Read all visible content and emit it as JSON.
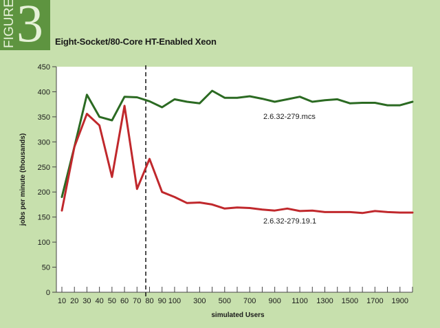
{
  "figure": {
    "word": "FIGURE",
    "number": "3"
  },
  "colors": {
    "background": "#c7e0ad",
    "badge": "#5e9440",
    "green_series": "#2b6a22",
    "red_series": "#c0282c"
  },
  "chart_data": {
    "type": "line",
    "title": "Eight-Socket/80-Core HT-Enabled Xeon",
    "xlabel": "simulated Users",
    "ylabel": "jobs per minute (thousands)",
    "ylim": [
      0,
      450
    ],
    "yticks": [
      0,
      50,
      100,
      150,
      200,
      250,
      300,
      350,
      400,
      450
    ],
    "x": [
      10,
      20,
      30,
      40,
      50,
      60,
      70,
      80,
      90,
      100,
      200,
      300,
      400,
      500,
      600,
      700,
      800,
      900,
      1000,
      1100,
      1200,
      1300,
      1400,
      1500,
      1600,
      1700,
      1800,
      1900,
      2000
    ],
    "x_tick_labels": [
      "10",
      "20",
      "30",
      "40",
      "50",
      "60",
      "70",
      "80",
      "90",
      "100",
      "300",
      "500",
      "700",
      "900",
      "1100",
      "1300",
      "1500",
      "1700",
      "1900"
    ],
    "x_tick_labeled_values": [
      10,
      20,
      30,
      40,
      50,
      60,
      70,
      80,
      90,
      100,
      300,
      500,
      700,
      900,
      1100,
      1300,
      1500,
      1700,
      1900
    ],
    "vertical_marker": {
      "x": 77,
      "style": "dashed"
    },
    "grid": false,
    "series": [
      {
        "name": "2.6.32-279.mcs",
        "color": "#2b6a22",
        "values": [
          190,
          290,
          394,
          350,
          343,
          390,
          389,
          381,
          369,
          385,
          380,
          377,
          402,
          388,
          388,
          391,
          386,
          380,
          385,
          390,
          380,
          383,
          385,
          377,
          378,
          378,
          373,
          373,
          380
        ]
      },
      {
        "name": "2.6.32-279.19.1",
        "color": "#c0282c",
        "values": [
          163,
          290,
          356,
          333,
          230,
          372,
          206,
          266,
          200,
          190,
          178,
          179,
          175,
          167,
          169,
          168,
          165,
          163,
          167,
          162,
          163,
          160,
          160,
          160,
          158,
          162,
          160,
          159,
          159
        ]
      }
    ]
  }
}
